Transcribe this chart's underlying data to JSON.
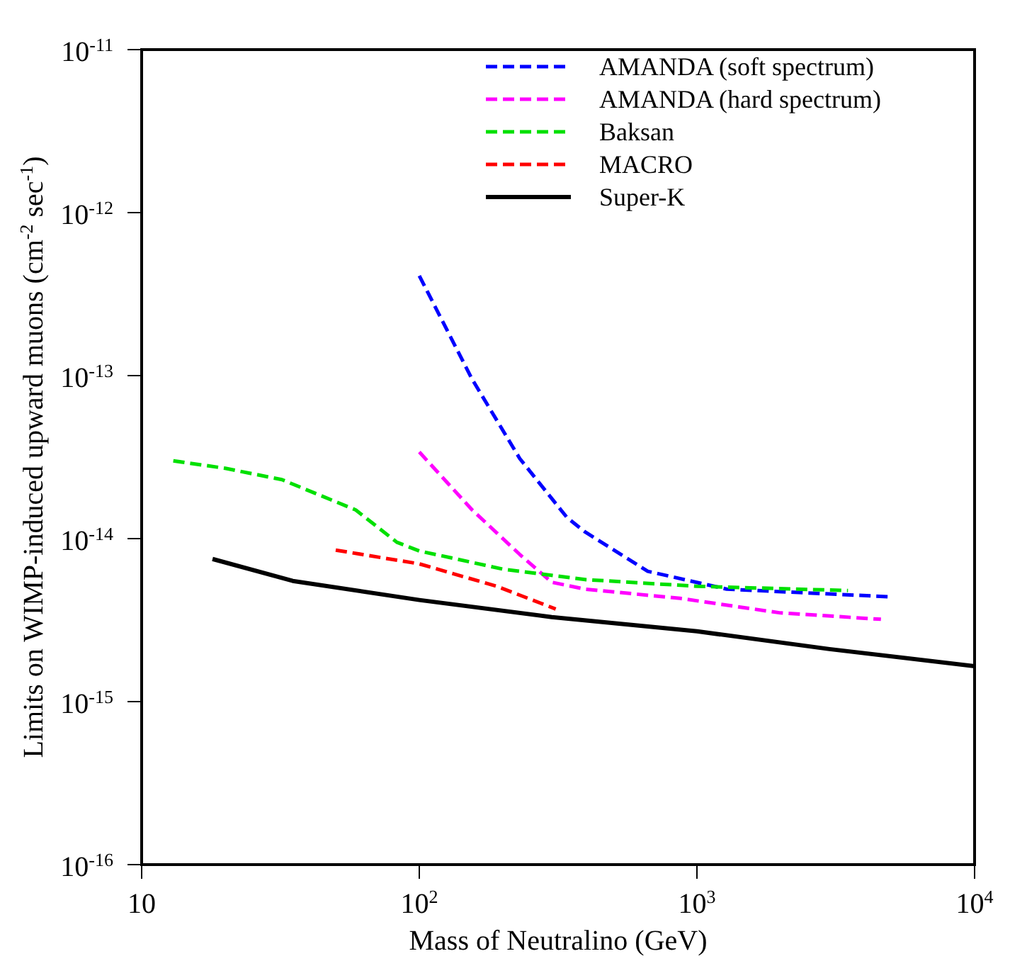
{
  "chart_data": {
    "type": "line",
    "xlabel": "Mass of Neutralino (GeV)",
    "ylabel": "Limits on WIMP-induced upward muons (cm$^{-2}$ sec$^{-1}$)",
    "log": "xy",
    "xlim": [
      10,
      10000
    ],
    "ylim": [
      1e-16,
      1e-11
    ],
    "xticks": [
      10,
      {
        "value": 100,
        "label": "10$^{2}$"
      },
      {
        "value": 1000,
        "label": "10$^{3}$"
      },
      {
        "value": 10000,
        "label": "10$^{4}$"
      }
    ],
    "yticks": [
      {
        "value": 1e-16,
        "label": "10$^{-16}$"
      },
      {
        "value": 1e-15,
        "label": "10$^{-15}$"
      },
      {
        "value": 1e-14,
        "label": "10$^{-14}$"
      },
      {
        "value": 1e-13,
        "label": "10$^{-13}$"
      },
      {
        "value": 1e-12,
        "label": "10$^{-12}$"
      },
      {
        "value": 1e-11,
        "label": "10$^{-11}$"
      }
    ],
    "legend": "top right",
    "marker": "none",
    "series": [
      {
        "name": "AMANDA (soft spectrum)",
        "color": "#0000ff",
        "line_style": "dashed",
        "x": [
          100,
          155,
          230,
          340,
          395,
          665,
          1280,
          4900
        ],
        "values": [
          4.1e-13,
          9.5e-14,
          3.1e-14,
          1.35e-14,
          1.1e-14,
          6.3e-15,
          4.9e-15,
          4.4e-15
        ]
      },
      {
        "name": "AMANDA (hard spectrum)",
        "color": "#ff00ff",
        "line_style": "dashed",
        "x": [
          100,
          155,
          230,
          300,
          395,
          870,
          2000,
          4600
        ],
        "values": [
          3.4e-14,
          1.5e-14,
          8e-15,
          5.4e-15,
          4.9e-15,
          4.3e-15,
          3.5e-15,
          3.2e-15
        ]
      },
      {
        "name": "Baksan",
        "color": "#00e000",
        "line_style": "dashed",
        "x": [
          13,
          20,
          32,
          59,
          83,
          100,
          200,
          400,
          1000,
          3500
        ],
        "values": [
          3e-14,
          2.7e-14,
          2.3e-14,
          1.5e-14,
          9.5e-15,
          8.4e-15,
          6.5e-15,
          5.6e-15,
          5.1e-15,
          4.8e-15
        ]
      },
      {
        "name": "MACRO",
        "color": "#ff0000",
        "line_style": "dashed",
        "x": [
          50,
          100,
          190,
          310
        ],
        "values": [
          8.5e-15,
          7e-15,
          5.1e-15,
          3.7e-15
        ]
      },
      {
        "name": "Super-K",
        "color": "#000000",
        "line_style": "solid",
        "x": [
          18,
          35,
          100,
          300,
          1000,
          3000,
          10000
        ],
        "values": [
          7.5e-15,
          5.5e-15,
          4.2e-15,
          3.3e-15,
          2.7e-15,
          2.1e-15,
          1.65e-15
        ]
      }
    ]
  }
}
